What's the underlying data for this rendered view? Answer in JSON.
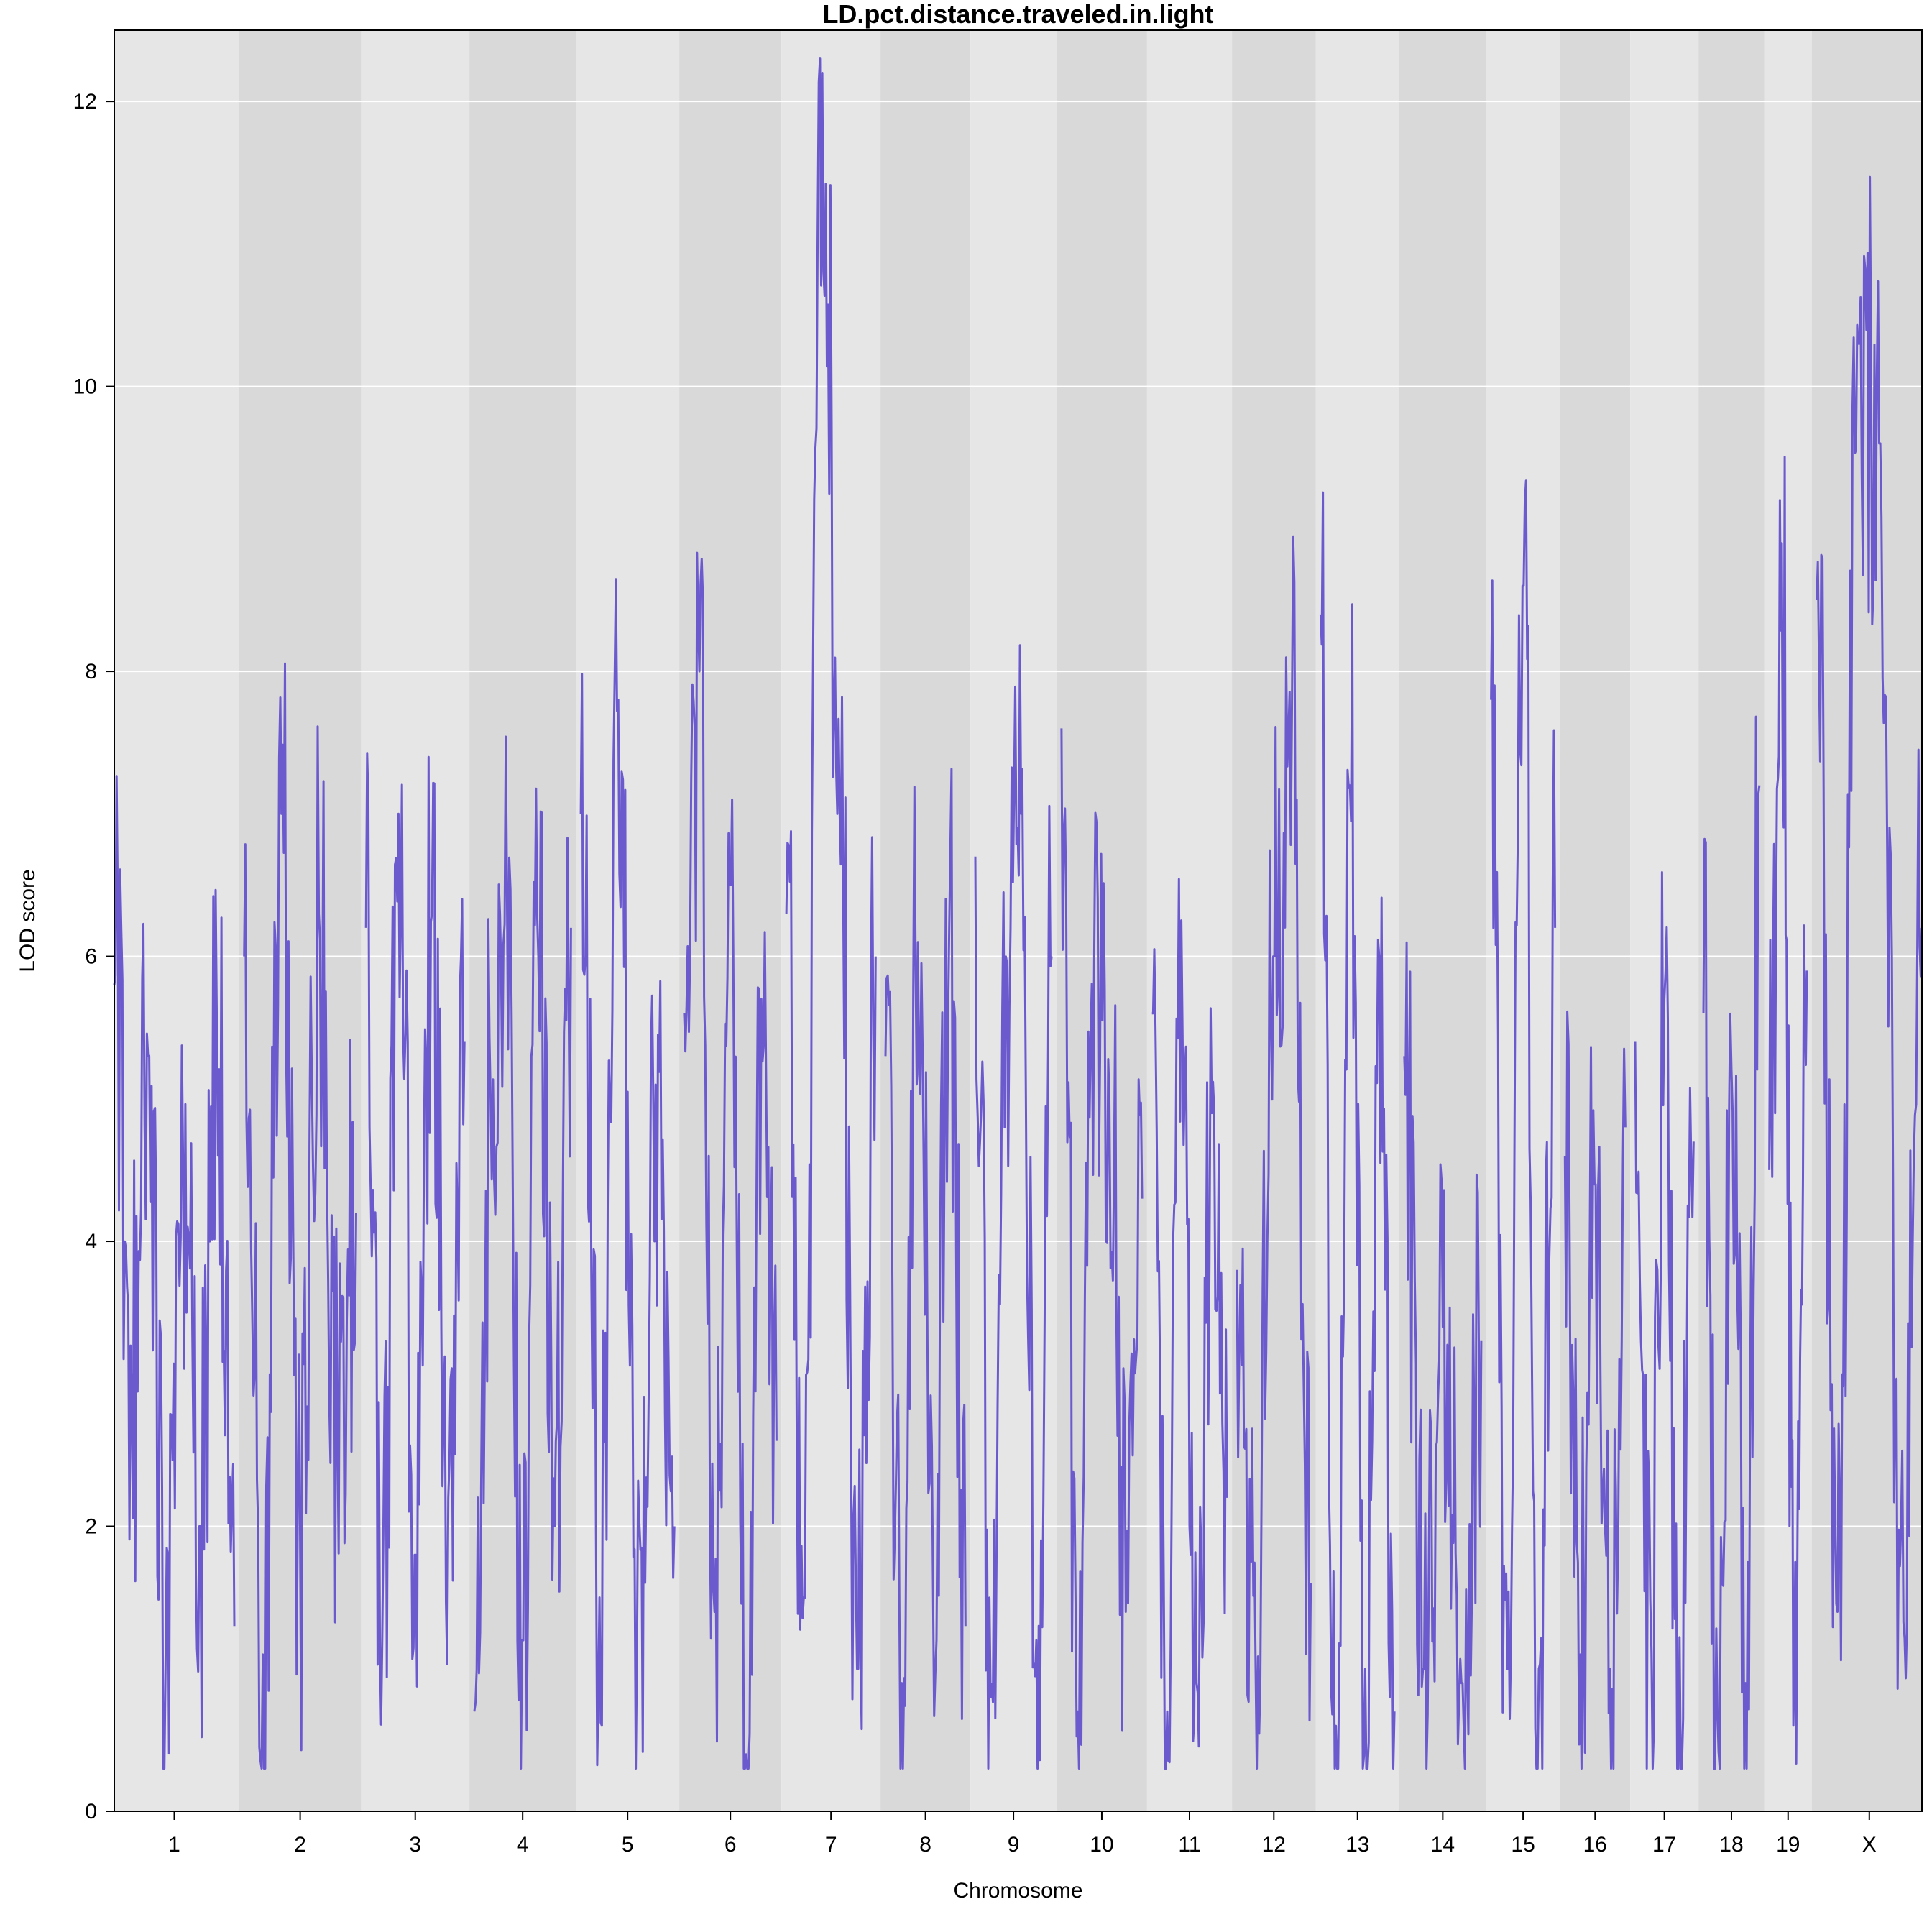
{
  "chart_data": {
    "type": "line",
    "title": "LD.pct.distance.traveled.in.light",
    "xlabel": "Chromosome",
    "ylabel": "LOD score",
    "ylim": [
      0,
      12.5
    ],
    "y_ticks": [
      0,
      2,
      4,
      6,
      8,
      10,
      12
    ],
    "grid": true,
    "background_colors": [
      "#e6e6e6",
      "#d9d9d9"
    ],
    "line_color": "#6a5acd",
    "chromosomes": [
      "1",
      "2",
      "3",
      "4",
      "5",
      "6",
      "7",
      "8",
      "9",
      "10",
      "11",
      "12",
      "13",
      "14",
      "15",
      "16",
      "17",
      "18",
      "19",
      "X"
    ],
    "chromosome_lengths": [
      195,
      182,
      160,
      157,
      152,
      150,
      145,
      130,
      124,
      131,
      122,
      120,
      120,
      125,
      104,
      98,
      95,
      91,
      61,
      171
    ],
    "series": [
      {
        "peaks": [
          [
            5.8,
            2.9,
            5.3,
            1.0,
            4.6,
            2.0,
            5.5,
            1.3
          ],
          [
            6.0,
            1.1,
            7.0,
            1.9,
            6.3,
            2.6,
            4.2
          ],
          [
            6.2,
            1.2,
            7.0,
            1.8,
            6.3,
            2.2,
            5.4
          ],
          [
            0.7,
            5.0,
            6.5,
            1.2,
            6.0,
            2.0,
            6.2
          ],
          [
            7.0,
            1.5,
            7.8,
            1.1,
            5.1,
            2.0
          ],
          [
            5.6,
            8.0,
            1.4,
            6.5,
            0.4,
            5.7,
            2.6
          ],
          [
            6.3,
            1.5,
            12.2,
            7.0,
            1.0,
            6.0
          ],
          [
            5.3,
            0.9,
            6.1,
            1.6,
            6.2,
            1.3
          ],
          [
            6.7,
            0.8,
            6.0,
            7.0,
            1.2,
            6.0
          ],
          [
            7.6,
            0.7,
            6.0,
            5.0,
            1.4,
            4.3
          ],
          [
            5.6,
            0.7,
            5.5,
            0.9,
            4.9,
            2.2
          ],
          [
            3.8,
            1.0,
            6.0,
            7.8,
            1.6
          ],
          [
            8.4,
            0.6,
            7.2,
            1.0,
            6.0,
            0.7
          ],
          [
            5.3,
            1.0,
            3.4,
            0.9,
            3.3
          ],
          [
            7.8,
            1.0,
            8.6,
            1.0,
            6.2
          ],
          [
            4.6,
            1.1,
            4.4,
            1.0,
            4.8
          ],
          [
            5.4,
            0.9,
            5.7,
            0.6,
            4.7
          ],
          [
            5.6,
            0.7,
            5.2,
            0.9,
            7.2
          ],
          [
            4.5,
            8.9,
            1.0,
            5.9
          ],
          [
            8.5,
            1.4,
            10.3,
            9.6,
            2.0,
            6.2
          ]
        ]
      }
    ]
  }
}
